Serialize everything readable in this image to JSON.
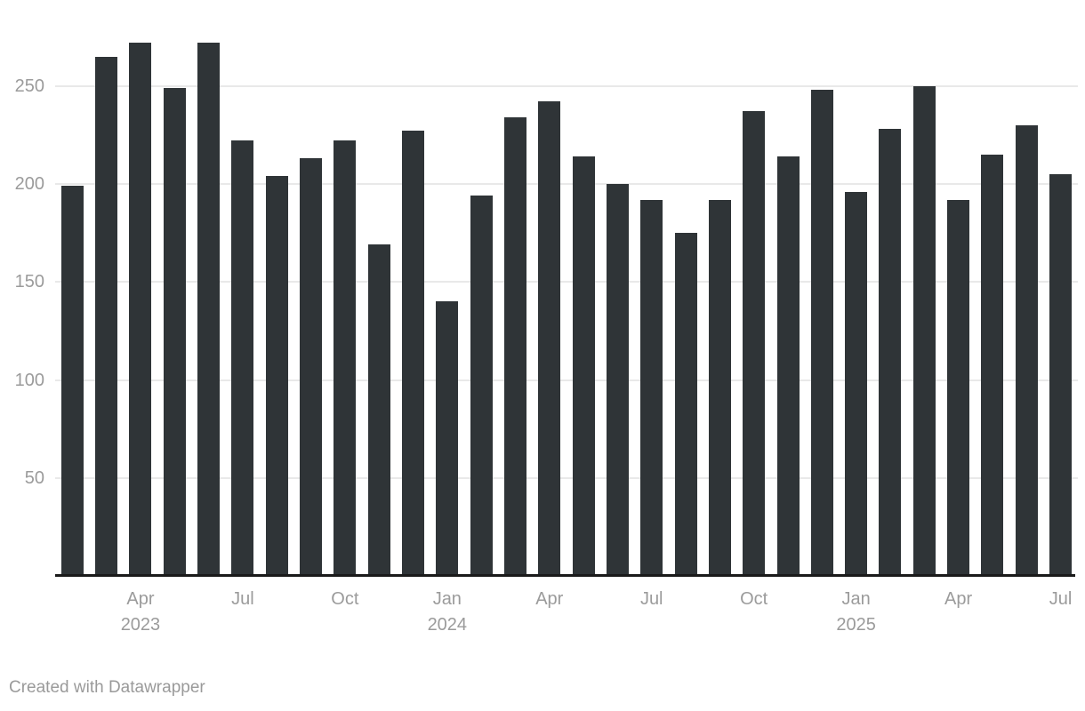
{
  "chart_data": {
    "type": "bar",
    "categories": [
      "Feb 2023",
      "Mar 2023",
      "Apr 2023",
      "May 2023",
      "Jun 2023",
      "Jul 2023",
      "Aug 2023",
      "Sep 2023",
      "Oct 2023",
      "Nov 2023",
      "Dec 2023",
      "Jan 2024",
      "Feb 2024",
      "Mar 2024",
      "Apr 2024",
      "May 2024",
      "Jun 2024",
      "Jul 2024",
      "Aug 2024",
      "Sep 2024",
      "Oct 2024",
      "Nov 2024",
      "Dec 2024",
      "Jan 2025",
      "Feb 2025",
      "Mar 2025",
      "Apr 2025",
      "May 2025",
      "Jun 2025",
      "Jul 2025"
    ],
    "values": [
      199,
      265,
      272,
      249,
      272,
      222,
      204,
      213,
      222,
      169,
      227,
      140,
      194,
      234,
      242,
      214,
      200,
      192,
      175,
      192,
      237,
      214,
      248,
      196,
      228,
      250,
      192,
      215,
      230,
      205
    ],
    "y_ticks": [
      50,
      100,
      150,
      200,
      250
    ],
    "ylim": [
      0,
      280
    ],
    "grid": "horizontal",
    "legend": "none",
    "x_tick_labels": [
      {
        "index": 2,
        "label": "Apr",
        "year": "2023"
      },
      {
        "index": 5,
        "label": "Jul"
      },
      {
        "index": 8,
        "label": "Oct"
      },
      {
        "index": 11,
        "label": "Jan",
        "year": "2024"
      },
      {
        "index": 14,
        "label": "Apr"
      },
      {
        "index": 17,
        "label": "Jul"
      },
      {
        "index": 20,
        "label": "Oct"
      },
      {
        "index": 23,
        "label": "Jan",
        "year": "2025"
      },
      {
        "index": 26,
        "label": "Apr"
      },
      {
        "index": 29,
        "label": "Jul"
      }
    ]
  },
  "colors": {
    "bar": "#2f3437",
    "gridline": "#e9e9e9",
    "axis_line": "#1a1a1a",
    "tick_label": "#9b9b9b",
    "footer_text": "#9a9a9a"
  },
  "footer": {
    "text": "Created with Datawrapper"
  }
}
